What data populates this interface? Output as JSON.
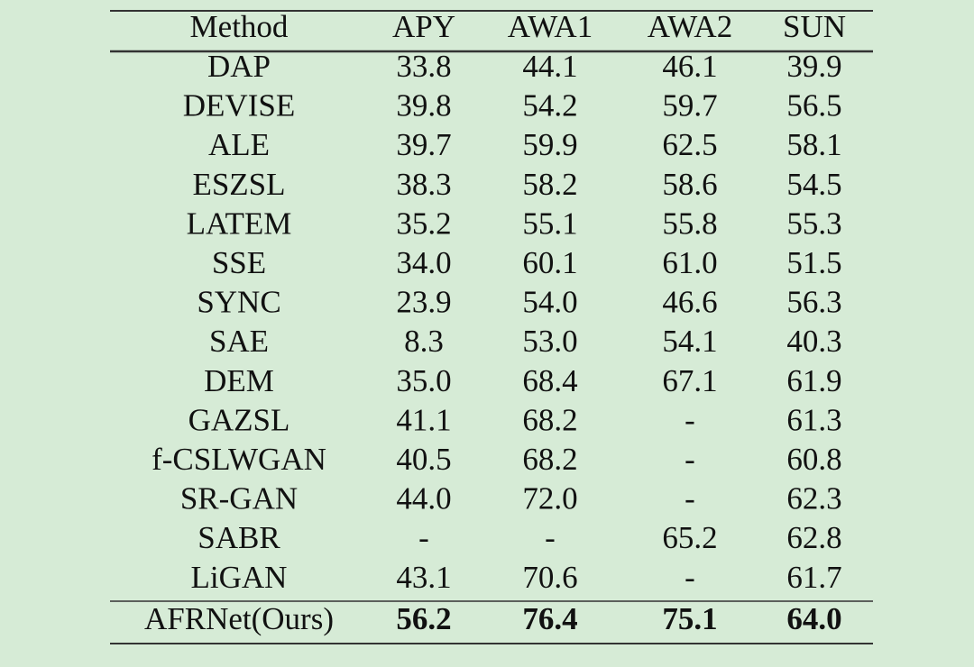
{
  "table": {
    "header": [
      "Method",
      "APY",
      "AWA1",
      "AWA2",
      "SUN"
    ],
    "rows": [
      [
        "DAP",
        "33.8",
        "44.1",
        "46.1",
        "39.9"
      ],
      [
        "DEVISE",
        "39.8",
        "54.2",
        "59.7",
        "56.5"
      ],
      [
        "ALE",
        "39.7",
        "59.9",
        "62.5",
        "58.1"
      ],
      [
        "ESZSL",
        "38.3",
        "58.2",
        "58.6",
        "54.5"
      ],
      [
        "LATEM",
        "35.2",
        "55.1",
        "55.8",
        "55.3"
      ],
      [
        "SSE",
        "34.0",
        "60.1",
        "61.0",
        "51.5"
      ],
      [
        "SYNC",
        "23.9",
        "54.0",
        "46.6",
        "56.3"
      ],
      [
        "SAE",
        "8.3",
        "53.0",
        "54.1",
        "40.3"
      ],
      [
        "DEM",
        "35.0",
        "68.4",
        "67.1",
        "61.9"
      ],
      [
        "GAZSL",
        "41.1",
        "68.2",
        "-",
        "61.3"
      ],
      [
        "f-CSLWGAN",
        "40.5",
        "68.2",
        "-",
        "60.8"
      ],
      [
        "SR-GAN",
        "44.0",
        "72.0",
        "-",
        "62.3"
      ],
      [
        "SABR",
        "-",
        "-",
        "65.2",
        "62.8"
      ],
      [
        "LiGAN",
        "43.1",
        "70.6",
        "-",
        "61.7"
      ]
    ],
    "final_row": [
      "AFRNet(Ours)",
      "56.2",
      "76.4",
      "75.1",
      "64.0"
    ]
  }
}
